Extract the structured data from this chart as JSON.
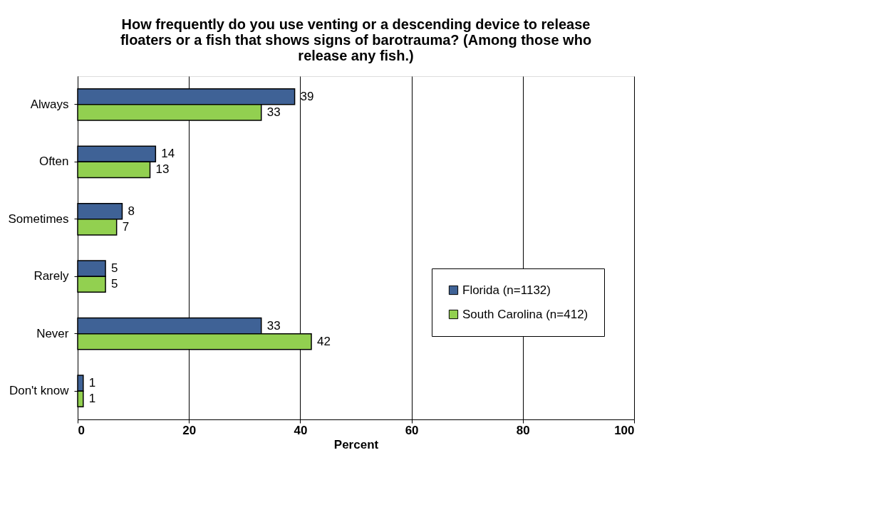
{
  "chart_data": {
    "type": "bar",
    "orientation": "horizontal",
    "title": "How frequently do you use venting or a descending device to release floaters or a fish that shows signs of barotrauma? (Among those who release any fish.)",
    "xlabel": "Percent",
    "categories": [
      "Always",
      "Often",
      "Sometimes",
      "Rarely",
      "Never",
      "Don't know"
    ],
    "series": [
      {
        "name": "Florida (n=1132)",
        "color": "#3f6296",
        "values": [
          39,
          14,
          8,
          5,
          33,
          1
        ]
      },
      {
        "name": "South Carolina (n=412)",
        "color": "#92d050",
        "values": [
          33,
          13,
          7,
          5,
          42,
          1
        ]
      }
    ],
    "xlim": [
      0,
      100
    ],
    "xticks": [
      0,
      20,
      40,
      60,
      80,
      100
    ],
    "grid": "x",
    "legend": "right",
    "data_labels": true
  }
}
